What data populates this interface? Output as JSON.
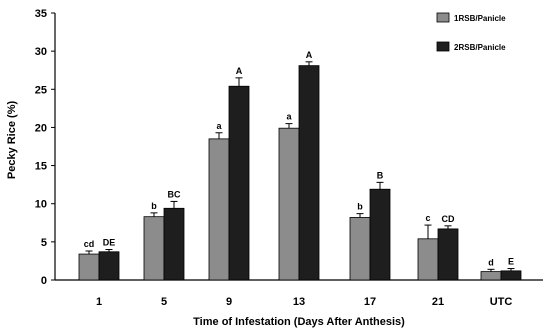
{
  "chart_data": {
    "type": "bar",
    "xlabel": "Time of Infestation (Days After Anthesis)",
    "ylabel": "Pecky Rice (%)",
    "categories": [
      "1",
      "5",
      "9",
      "13",
      "17",
      "21",
      "UTC"
    ],
    "ylim": [
      0,
      35
    ],
    "yticks": [
      0,
      5,
      10,
      15,
      20,
      25,
      30,
      35
    ],
    "grid": false,
    "legend_position": "top-right",
    "series": [
      {
        "name": "1RSB/Panicle",
        "color": "#8c8c8c",
        "values": [
          3.4,
          8.3,
          18.5,
          19.9,
          8.2,
          5.4,
          1.1
        ],
        "errors": [
          0.4,
          0.5,
          0.8,
          0.6,
          0.5,
          1.8,
          0.3
        ],
        "labels": [
          "cd",
          "b",
          "a",
          "a",
          "b",
          "c",
          "d"
        ]
      },
      {
        "name": "2RSB/Panicle",
        "color": "#1e1e1e",
        "values": [
          3.7,
          9.4,
          25.4,
          28.1,
          11.9,
          6.7,
          1.2
        ],
        "errors": [
          0.3,
          0.9,
          1.1,
          0.5,
          0.9,
          0.4,
          0.3
        ],
        "labels": [
          "DE",
          "BC",
          "A",
          "A",
          "B",
          "CD",
          "E"
        ]
      }
    ]
  }
}
